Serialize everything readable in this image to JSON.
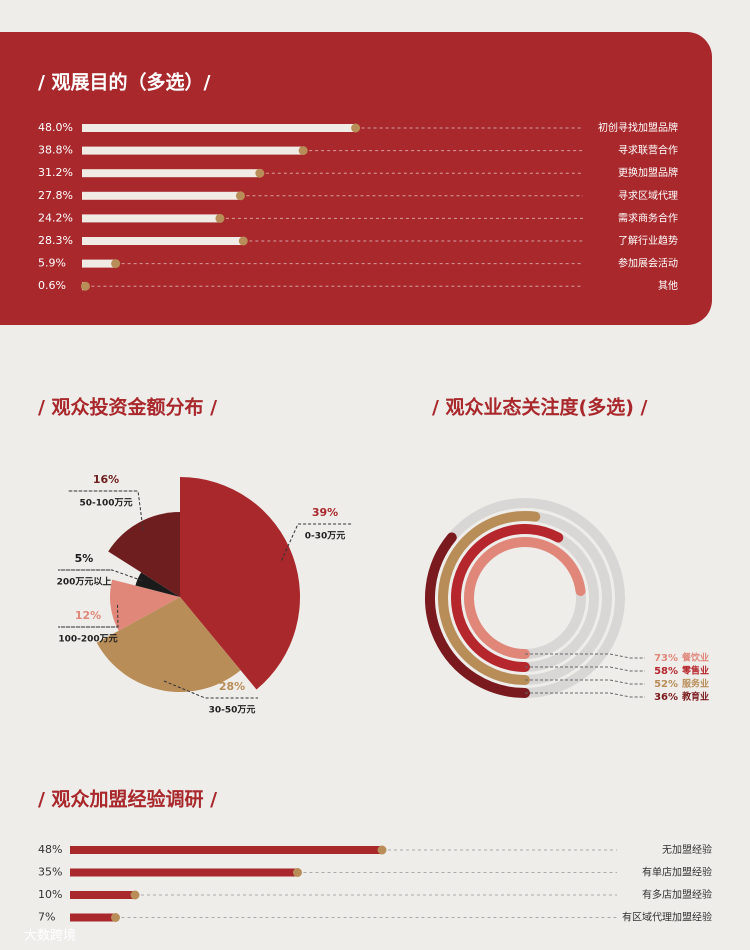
{
  "watermark": "大数跨境",
  "chart_data": [
    {
      "type": "bar",
      "title": "/ 观展目的（多选）/",
      "categories": [
        "初创寻找加盟品牌",
        "寻求联营合作",
        "更换加盟品牌",
        "寻求区域代理",
        "需求商务合作",
        "了解行业趋势",
        "参加展会活动",
        "其他"
      ],
      "values": [
        48.0,
        38.8,
        31.2,
        27.8,
        24.2,
        28.3,
        5.9,
        0.6
      ],
      "value_labels": [
        "48.0%",
        "38.8%",
        "31.2%",
        "27.8%",
        "24.2%",
        "28.3%",
        "5.9%",
        "0.6%"
      ],
      "color": "#f1ebe6",
      "marker_color": "#b88d58"
    },
    {
      "type": "pie",
      "title": "/ 观众投资金额分布 /",
      "categories": [
        "0-30万元",
        "30-50万元",
        "100-200万元",
        "200万元以上",
        "50-100万元"
      ],
      "values": [
        39,
        28,
        12,
        5,
        16
      ],
      "value_labels": [
        "39%",
        "28%",
        "12%",
        "5%",
        "16%"
      ],
      "colors": [
        "#a8282c",
        "#b88d58",
        "#e0877a",
        "#1a1a1a",
        "#6e1e1e"
      ]
    },
    {
      "type": "radial-bar",
      "title": "/ 观众业态关注度(多选) /",
      "categories": [
        "餐饮业",
        "零售业",
        "服务业",
        "教育业"
      ],
      "values": [
        73,
        58,
        52,
        36
      ],
      "value_labels": [
        "73%",
        "58%",
        "52%",
        "36%"
      ],
      "colors": [
        "#e0877a",
        "#b5272d",
        "#b88d58",
        "#7a1a1e"
      ]
    },
    {
      "type": "bar",
      "title": "/ 观众加盟经验调研 /",
      "categories": [
        "无加盟经验",
        "有单店加盟经验",
        "有多店加盟经验",
        "有区域代理加盟经验"
      ],
      "values": [
        48,
        35,
        10,
        7
      ],
      "value_labels": [
        "48%",
        "35%",
        "10%",
        "7%"
      ],
      "color": "#a8282c",
      "marker_color": "#b88d58"
    }
  ]
}
